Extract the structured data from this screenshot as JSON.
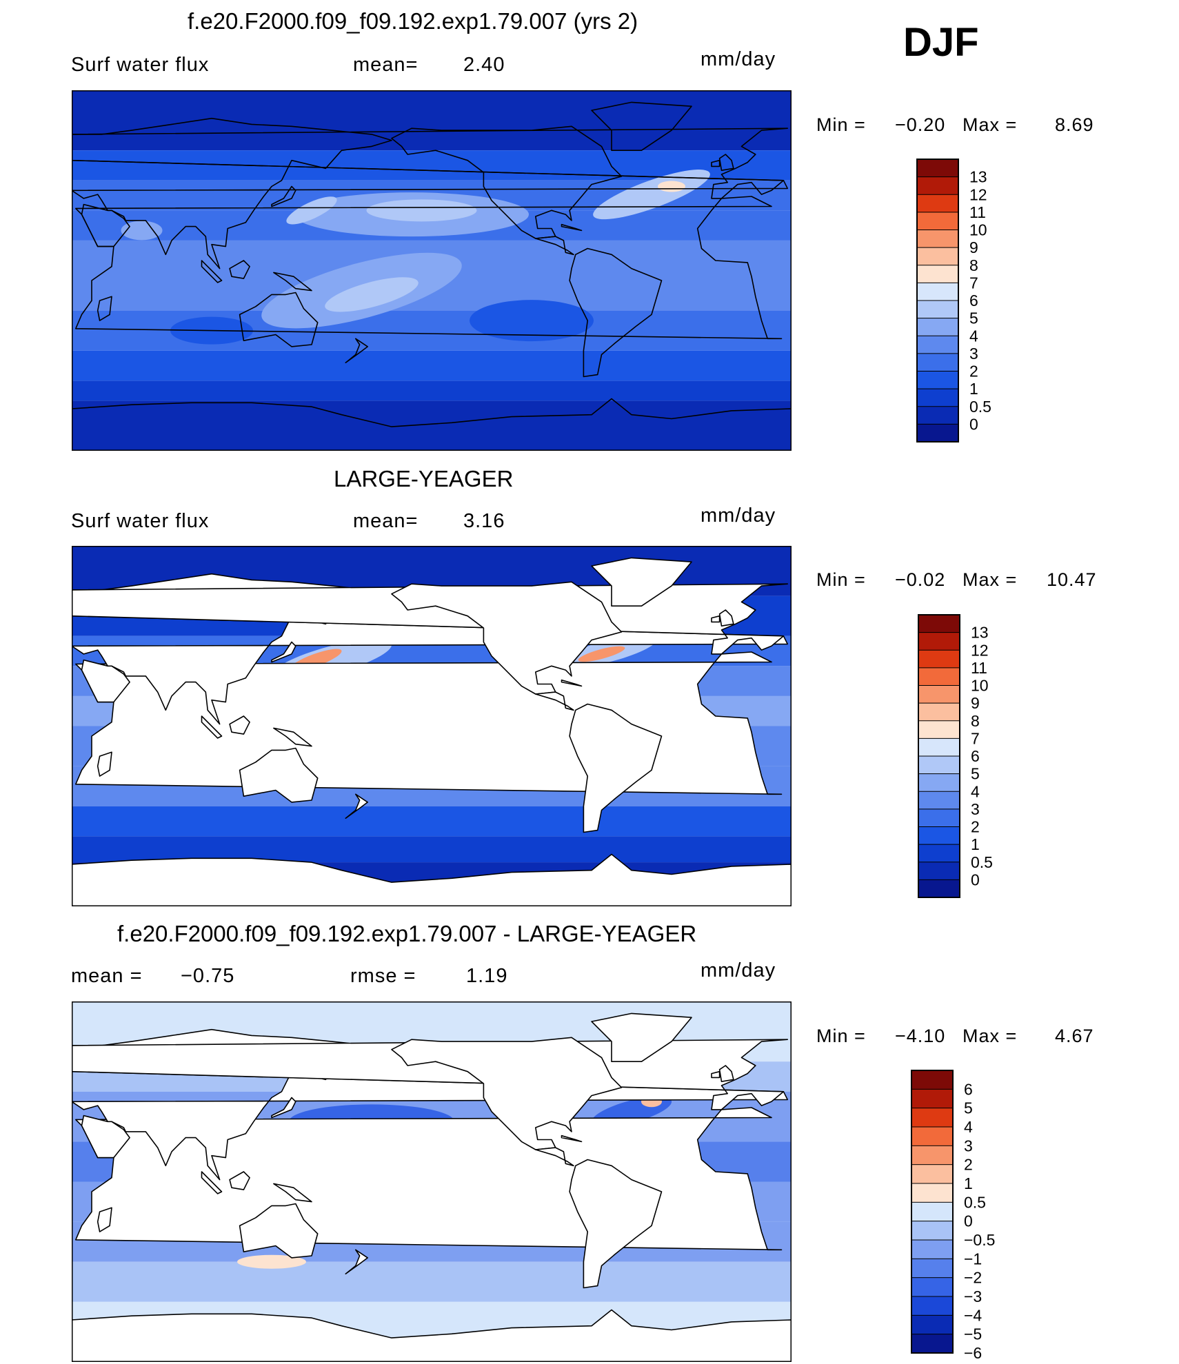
{
  "season": "DJF",
  "colors": {
    "abs_scale": [
      "#08178f",
      "#0a2bb4",
      "#0e3fcf",
      "#1b56e4",
      "#3b6fea",
      "#5e89ee",
      "#86a8f3",
      "#b0c8f7",
      "#d7e6fb",
      "#fde3d0",
      "#fbbf9f",
      "#f7956b",
      "#f26a3a",
      "#de3a12",
      "#b11a08",
      "#7d0a07"
    ],
    "diff_scale": [
      "#08178f",
      "#0a2bb4",
      "#1b48d8",
      "#3664e6",
      "#5680ec",
      "#7e9ff1",
      "#a9c3f6",
      "#d5e6fb",
      "#fde3d0",
      "#fbbf9f",
      "#f7956b",
      "#f26a3a",
      "#de3a12",
      "#b11a08",
      "#7d0a07"
    ],
    "land": "#ffffff",
    "coast": "#000000"
  },
  "panels": [
    {
      "title": "f.e20.F2000.f09_f09.192.exp1.79.007 (yrs 2)",
      "left_label": "Surf  water  flux",
      "mid_label": "mean=",
      "mid_value": "2.40",
      "units": "mm/day",
      "min_label": "Min  =",
      "min_value": "−0.20",
      "max_label": "Max  =",
      "max_value": "8.69",
      "colorbar_labels": [
        "13",
        "12",
        "11",
        "10",
        "9",
        "8",
        "7",
        "6",
        "5",
        "4",
        "3",
        "2",
        "1",
        "0.5",
        "0"
      ],
      "land_masked": false
    },
    {
      "title": "LARGE-YEAGER",
      "left_label": "Surf  water  flux",
      "mid_label": "mean=",
      "mid_value": "3.16",
      "units": "mm/day",
      "min_label": "Min  =",
      "min_value": "−0.02",
      "max_label": "Max  =",
      "max_value": "10.47",
      "colorbar_labels": [
        "13",
        "12",
        "11",
        "10",
        "9",
        "8",
        "7",
        "6",
        "5",
        "4",
        "3",
        "2",
        "1",
        "0.5",
        "0"
      ],
      "land_masked": true
    },
    {
      "title": "f.e20.F2000.f09_f09.192.exp1.79.007 - LARGE-YEAGER",
      "left_label": "mean  =",
      "left_value": "−0.75",
      "mid_label": "rmse  =",
      "mid_value": "1.19",
      "units": "mm/day",
      "min_label": "Min  =",
      "min_value": "−4.10",
      "max_label": "Max  =",
      "max_value": "4.67",
      "colorbar_labels": [
        "6",
        "5",
        "4",
        "3",
        "2",
        "1",
        "0.5",
        "0",
        "−0.5",
        "−1",
        "−2",
        "−3",
        "−4",
        "−5",
        "−6"
      ],
      "land_masked": true
    }
  ],
  "chart_data": [
    {
      "type": "heatmap",
      "title": "f.e20.F2000.f09_f09.192.exp1.79.007 (yrs 2)",
      "variable": "Surf  water  flux",
      "units": "mm/day",
      "season": "DJF",
      "mean": 2.4,
      "min": -0.2,
      "max": 8.69,
      "levels": [
        0,
        0.5,
        1,
        2,
        3,
        4,
        5,
        6,
        7,
        8,
        9,
        10,
        11,
        12,
        13
      ]
    },
    {
      "type": "heatmap",
      "title": "LARGE-YEAGER",
      "variable": "Surf  water  flux",
      "units": "mm/day",
      "season": "DJF",
      "mean": 3.16,
      "min": -0.02,
      "max": 10.47,
      "levels": [
        0,
        0.5,
        1,
        2,
        3,
        4,
        5,
        6,
        7,
        8,
        9,
        10,
        11,
        12,
        13
      ]
    },
    {
      "type": "heatmap",
      "title": "f.e20.F2000.f09_f09.192.exp1.79.007 - LARGE-YEAGER",
      "units": "mm/day",
      "season": "DJF",
      "mean": -0.75,
      "rmse": 1.19,
      "min": -4.1,
      "max": 4.67,
      "levels": [
        -6,
        -5,
        -4,
        -3,
        -2,
        -1,
        -0.5,
        0,
        0.5,
        1,
        2,
        3,
        4,
        5,
        6
      ]
    }
  ]
}
